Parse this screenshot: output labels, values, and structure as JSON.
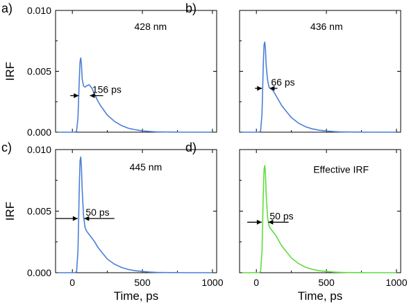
{
  "chart_data": [
    {
      "id": "a",
      "type": "line",
      "panel_label": "a)",
      "annotation": "428 nm",
      "fwhm_label": "156 ps",
      "ylabel": "IRF",
      "xlabel": "",
      "xlim": [
        -120,
        1030
      ],
      "ylim": [
        0,
        0.01
      ],
      "yticks": [
        "0.000",
        "0.005",
        "0.010"
      ],
      "xticks": [],
      "color": "#4a7fd6",
      "series": [
        {
          "x": [
            -100,
            20,
            30,
            40,
            50,
            55,
            60,
            65,
            70,
            80,
            90,
            100,
            120,
            140,
            160,
            180,
            200,
            250,
            300,
            350,
            400,
            450,
            500,
            550,
            600,
            700,
            800,
            1000
          ],
          "y": [
            0,
            0,
            0.0001,
            0.0012,
            0.0045,
            0.0058,
            0.0061,
            0.0056,
            0.0044,
            0.0038,
            0.0037,
            0.0038,
            0.0039,
            0.0036,
            0.0031,
            0.0026,
            0.0022,
            0.0014,
            0.0009,
            0.00055,
            0.00032,
            0.0002,
            0.00011,
            6e-05,
            3e-05,
            1e-05,
            0,
            0
          ]
        }
      ]
    },
    {
      "id": "b",
      "type": "line",
      "panel_label": "b)",
      "annotation": "436 nm",
      "fwhm_label": "66 ps",
      "ylabel": "",
      "xlabel": "",
      "xlim": [
        -120,
        1030
      ],
      "ylim": [
        0,
        0.01
      ],
      "yticks": [],
      "xticks": [],
      "color": "#4a7fd6",
      "series": [
        {
          "x": [
            -100,
            20,
            30,
            40,
            50,
            55,
            60,
            65,
            70,
            80,
            90,
            100,
            120,
            140,
            160,
            180,
            200,
            250,
            300,
            350,
            400,
            450,
            500,
            550,
            600,
            700,
            800,
            1000
          ],
          "y": [
            0,
            0,
            0.0001,
            0.0015,
            0.0058,
            0.0072,
            0.0074,
            0.0068,
            0.0055,
            0.0043,
            0.0037,
            0.0036,
            0.0034,
            0.003,
            0.0026,
            0.0022,
            0.0019,
            0.0012,
            0.00075,
            0.00045,
            0.00027,
            0.00016,
            0.0001,
            5e-05,
            3e-05,
            1e-05,
            0,
            0
          ]
        }
      ]
    },
    {
      "id": "c",
      "type": "line",
      "panel_label": "c)",
      "annotation": "445 nm",
      "fwhm_label": "50 ps",
      "ylabel": "IRF",
      "xlabel": "Time, ps",
      "xlim": [
        -120,
        1030
      ],
      "ylim": [
        0,
        0.01
      ],
      "yticks": [
        "0.000",
        "0.005",
        "0.010"
      ],
      "xticks": [
        0,
        500,
        1000
      ],
      "color": "#4a7fd6",
      "series": [
        {
          "x": [
            -100,
            20,
            30,
            40,
            50,
            55,
            60,
            65,
            70,
            80,
            90,
            100,
            120,
            140,
            160,
            180,
            200,
            250,
            300,
            350,
            400,
            450,
            500,
            550,
            600,
            700,
            800,
            1000
          ],
          "y": [
            0,
            0,
            0.0001,
            0.0018,
            0.0072,
            0.0091,
            0.0094,
            0.0086,
            0.0068,
            0.0046,
            0.0037,
            0.0034,
            0.0031,
            0.0028,
            0.0025,
            0.0021,
            0.0018,
            0.0011,
            0.0007,
            0.00043,
            0.00026,
            0.00016,
            0.0001,
            5e-05,
            3e-05,
            1e-05,
            0,
            0
          ]
        }
      ]
    },
    {
      "id": "d",
      "type": "line",
      "panel_label": "d)",
      "annotation": "Effective IRF",
      "fwhm_label": "50 ps",
      "ylabel": "",
      "xlabel": "Time, ps",
      "xlim": [
        -120,
        1030
      ],
      "ylim": [
        0,
        0.01
      ],
      "yticks": [],
      "xticks": [
        0,
        500,
        1000
      ],
      "color": "#5fdc3c",
      "series": [
        {
          "x": [
            -100,
            20,
            30,
            40,
            50,
            55,
            60,
            65,
            70,
            80,
            90,
            100,
            120,
            140,
            160,
            180,
            200,
            250,
            300,
            350,
            400,
            450,
            500,
            550,
            600,
            700,
            800,
            1000
          ],
          "y": [
            0,
            0,
            0.0001,
            0.0017,
            0.0068,
            0.0084,
            0.0087,
            0.008,
            0.0064,
            0.0045,
            0.0038,
            0.0036,
            0.0033,
            0.003,
            0.0026,
            0.0022,
            0.0019,
            0.0012,
            0.00075,
            0.00045,
            0.00027,
            0.00016,
            0.0001,
            5e-05,
            3e-05,
            1e-05,
            0,
            0
          ]
        }
      ]
    }
  ]
}
